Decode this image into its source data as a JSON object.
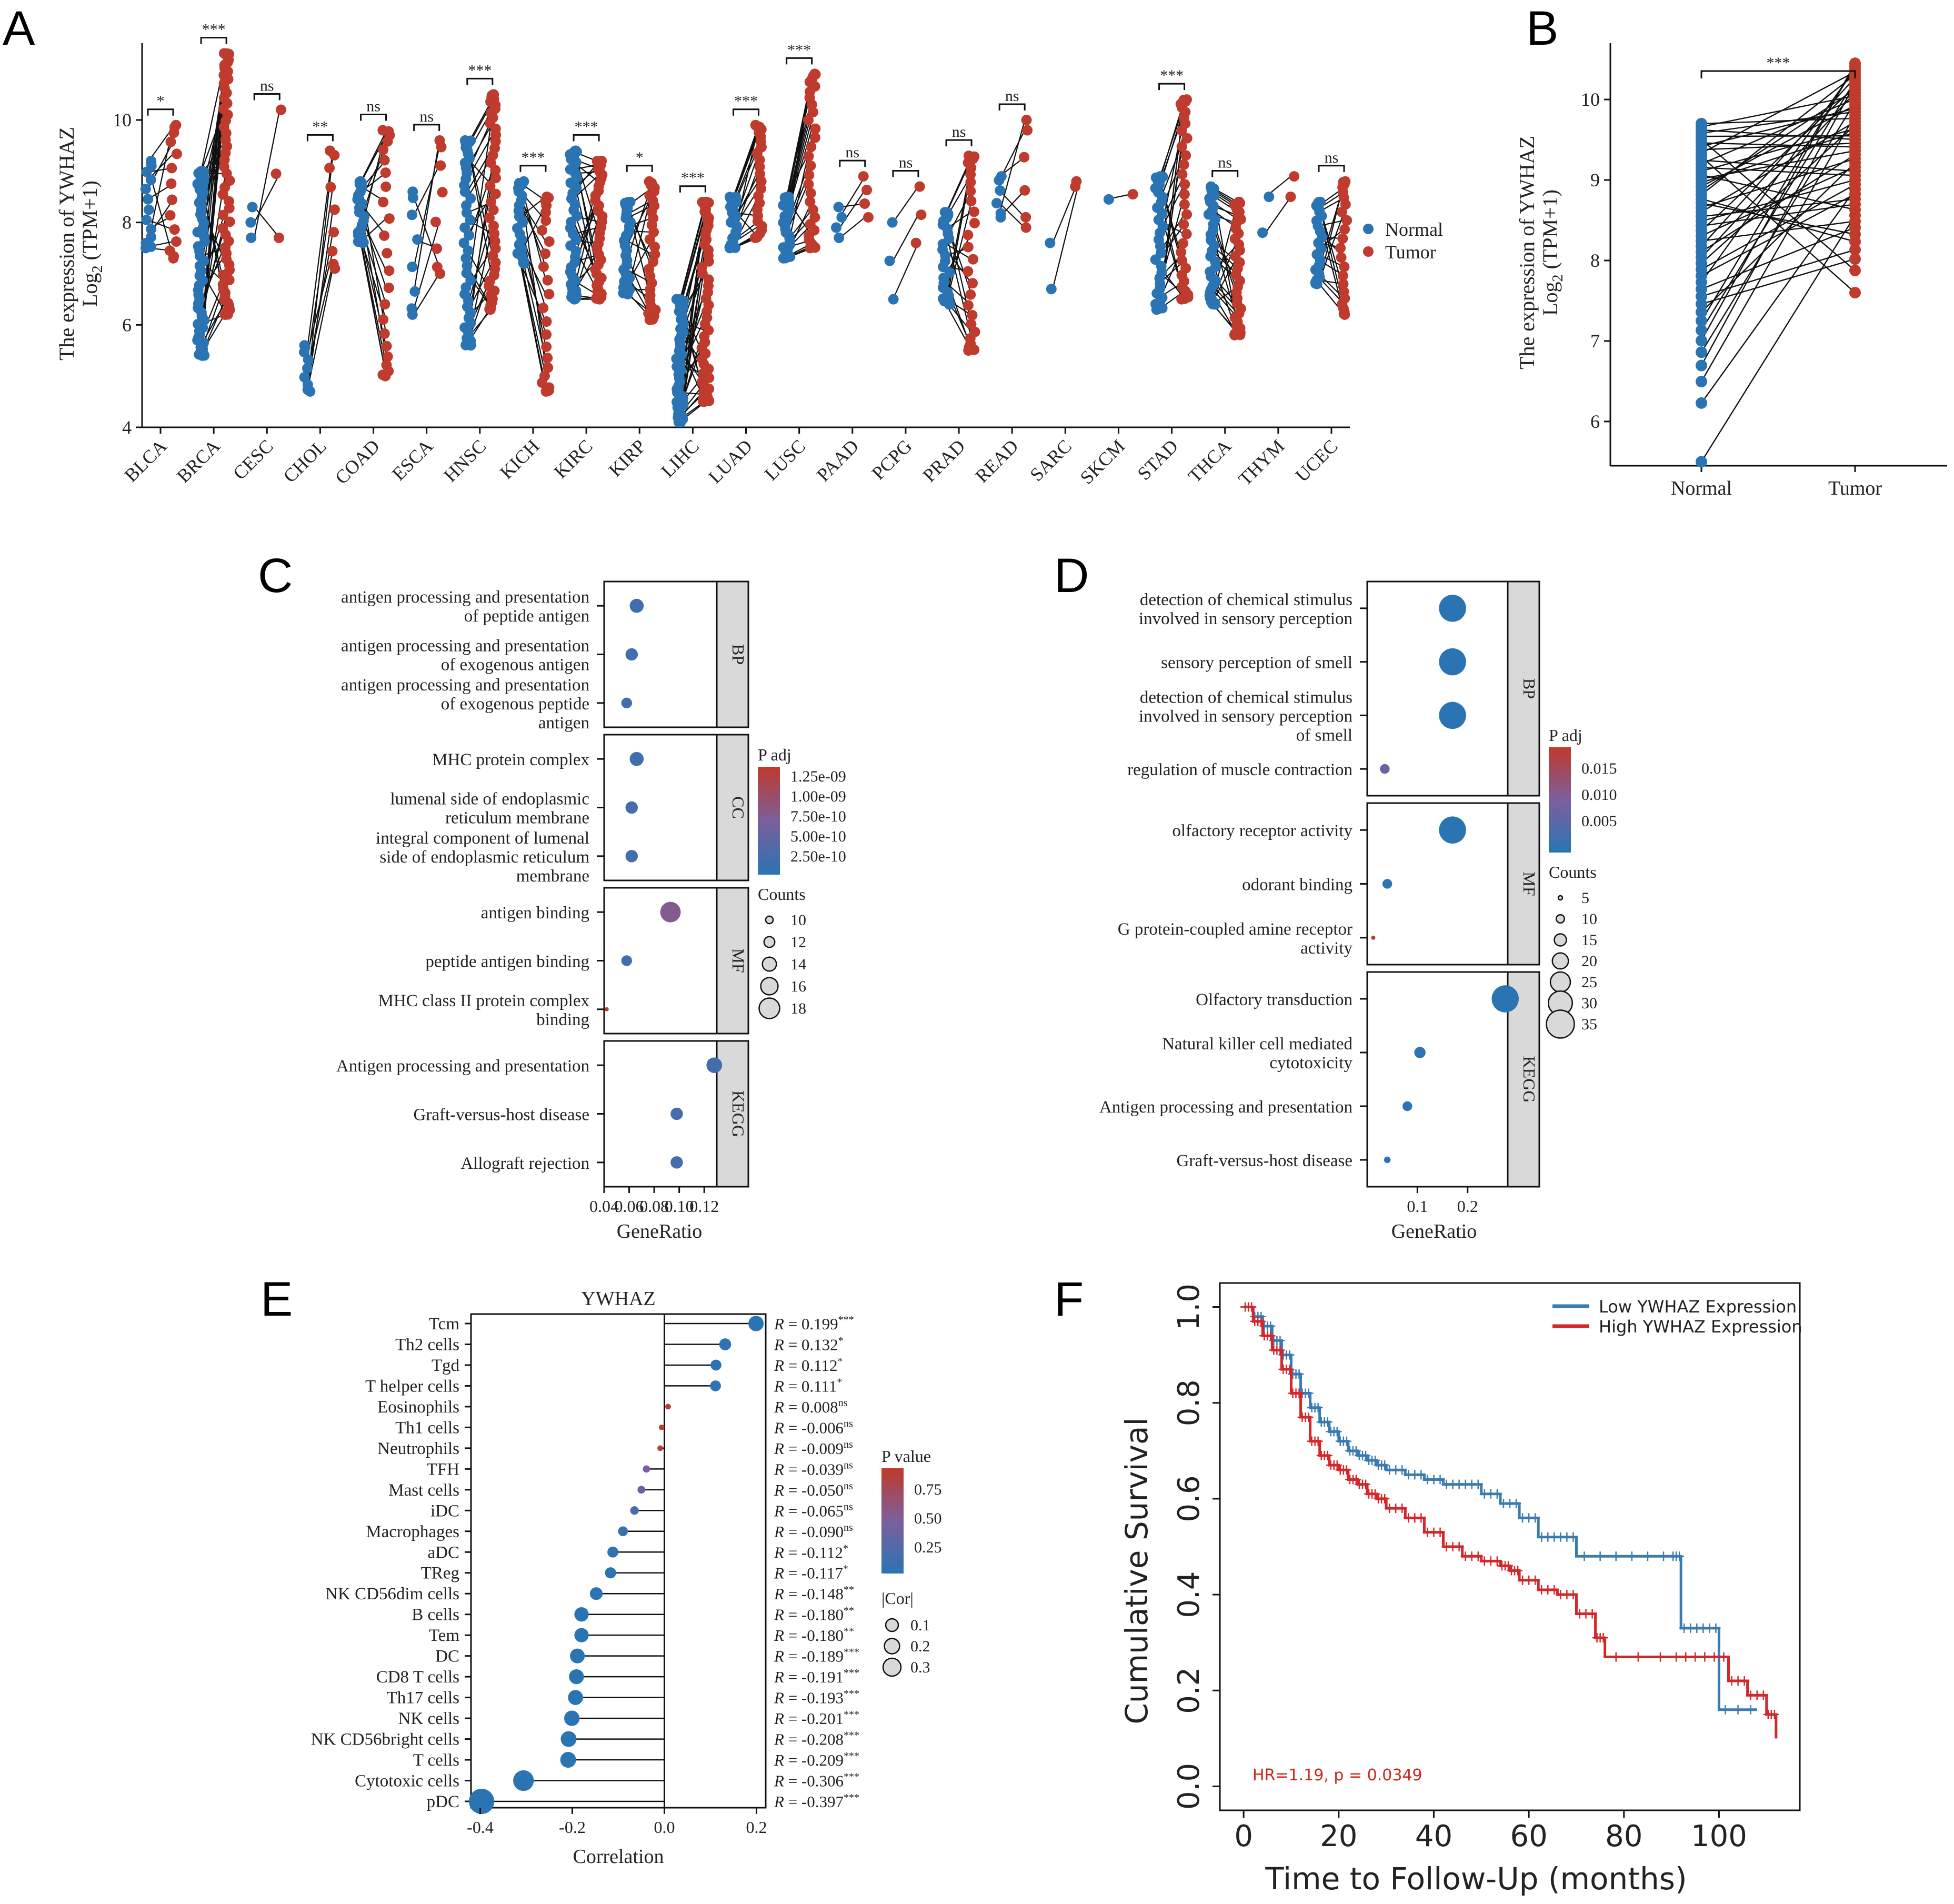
{
  "panels": {
    "A": "A",
    "B": "B",
    "C": "C",
    "D": "D",
    "E": "E",
    "F": "F"
  },
  "colors": {
    "normal": "#2a74b4",
    "tumor": "#bf3b2d",
    "line": "#111111",
    "low_km": "#3a7bb0",
    "high_km": "#d3272a",
    "hr_text": "#c8281e",
    "strip_fill": "#d9d9d9"
  },
  "chart_data": [
    {
      "id": "A",
      "type": "scatter",
      "title": "",
      "ylabel_line1": "The  expression   of YWHAZ",
      "ylabel_line2": "Log",
      "ylabel_sub": "2",
      "ylabel_tail": " (TPM+1)",
      "ylim": [
        4,
        11.5
      ],
      "yticks": [
        4,
        6,
        8,
        10
      ],
      "legend": [
        "Normal",
        "Tumor"
      ],
      "categories": [
        "BLCA",
        "BRCA",
        "CESC",
        "CHOL",
        "COAD",
        "ESCA",
        "HNSC",
        "KICH",
        "KIRC",
        "KIRP",
        "LIHC",
        "LUAD",
        "LUSC",
        "PAAD",
        "PCPG",
        "PRAD",
        "READ",
        "SARC",
        "SKCM",
        "STAD",
        "THCA",
        "THYM",
        "UCEC"
      ],
      "significance": [
        "*",
        "***",
        "ns",
        "**",
        "ns",
        "ns",
        "***",
        "***",
        "***",
        "*",
        "***",
        "***",
        "***",
        "ns",
        "ns",
        "ns",
        "ns",
        "",
        "",
        "***",
        "ns",
        "",
        "ns"
      ],
      "normal_range": [
        [
          7.5,
          9.2
        ],
        [
          5.4,
          9.0
        ],
        [
          7.7,
          8.3
        ],
        [
          4.7,
          5.6
        ],
        [
          7.6,
          8.8
        ],
        [
          6.2,
          8.6
        ],
        [
          5.6,
          9.6
        ],
        [
          7.2,
          8.8
        ],
        [
          6.5,
          9.4
        ],
        [
          6.6,
          8.4
        ],
        [
          4.1,
          6.5
        ],
        [
          7.5,
          8.5
        ],
        [
          7.3,
          8.5
        ],
        [
          7.7,
          8.3
        ],
        [
          6.5,
          8.0
        ],
        [
          6.4,
          8.2
        ],
        [
          8.1,
          8.9
        ],
        [
          6.7,
          7.6
        ],
        [
          8.4,
          8.5
        ],
        [
          6.3,
          8.9
        ],
        [
          6.4,
          8.7
        ],
        [
          7.8,
          8.5
        ],
        [
          6.8,
          8.4
        ]
      ],
      "tumor_range": [
        [
          7.3,
          9.9
        ],
        [
          6.2,
          11.3
        ],
        [
          7.7,
          10.2
        ],
        [
          7.1,
          9.4
        ],
        [
          5.0,
          9.8
        ],
        [
          7.0,
          9.6
        ],
        [
          6.3,
          10.5
        ],
        [
          4.7,
          8.5
        ],
        [
          6.5,
          9.2
        ],
        [
          6.1,
          8.8
        ],
        [
          4.5,
          8.4
        ],
        [
          7.7,
          9.9
        ],
        [
          7.5,
          10.9
        ],
        [
          8.1,
          8.9
        ],
        [
          7.6,
          8.7
        ],
        [
          5.5,
          9.3
        ],
        [
          7.9,
          10.0
        ],
        [
          8.7,
          8.8
        ],
        [
          8.5,
          8.6
        ],
        [
          6.5,
          10.4
        ],
        [
          5.8,
          8.4
        ],
        [
          8.5,
          8.9
        ],
        [
          6.2,
          8.8
        ]
      ],
      "n_points": [
        14,
        60,
        3,
        9,
        23,
        8,
        43,
        23,
        40,
        30,
        50,
        25,
        30,
        4,
        3,
        26,
        6,
        2,
        1,
        32,
        35,
        2,
        23
      ],
      "n_lines": [
        12,
        40,
        3,
        8,
        20,
        7,
        30,
        18,
        30,
        20,
        40,
        20,
        25,
        4,
        3,
        22,
        6,
        2,
        1,
        28,
        30,
        2,
        20
      ]
    },
    {
      "id": "B",
      "type": "scatter",
      "title": "",
      "ylabel_line1": "The  expression   of YWHAZ",
      "ylabel_line2": "Log",
      "ylabel_sub": "2",
      "ylabel_tail": " (TPM+1)",
      "ylim": [
        5.45,
        10.7
      ],
      "yticks": [
        6,
        7,
        8,
        9,
        10
      ],
      "categories": [
        "Normal",
        "Tumor"
      ],
      "significance": "***",
      "normal_range": [
        5.5,
        9.7
      ],
      "tumor_range": [
        7.6,
        10.45
      ],
      "n_pairs": 50
    },
    {
      "id": "C",
      "type": "scatter",
      "xlabel": "GeneRatio",
      "xlim": [
        0.04,
        0.13
      ],
      "xticks": [
        0.04,
        0.06,
        0.08,
        0.1,
        0.12
      ],
      "xtick_labels": [
        "0.04",
        "0.06",
        "0.08",
        "0.10",
        "0.12"
      ],
      "legend_padj_title": "P adj",
      "legend_padj_labels": [
        "1.25e-09",
        "1.00e-09",
        "7.50e-10",
        "5.00e-10",
        "2.50e-10"
      ],
      "legend_counts_title": "Counts",
      "legend_counts_labels": [
        "10",
        "12",
        "14",
        "16",
        "18"
      ],
      "groups": [
        {
          "label": "BP",
          "terms": [
            {
              "lines": [
                "antigen processing and presentation",
                "of peptide antigen"
              ],
              "x": 0.066,
              "count": 14,
              "padj": 2e-10
            },
            {
              "lines": [
                "antigen processing and presentation",
                "of exogenous antigen"
              ],
              "x": 0.062,
              "count": 13,
              "padj": 2e-10
            },
            {
              "lines": [
                "antigen processing and presentation",
                "of exogenous peptide",
                "antigen"
              ],
              "x": 0.058,
              "count": 12,
              "padj": 2e-10
            }
          ]
        },
        {
          "label": "CC",
          "terms": [
            {
              "lines": [
                "MHC protein complex"
              ],
              "x": 0.066,
              "count": 14,
              "padj": 2e-10
            },
            {
              "lines": [
                "lumenal side of endoplasmic",
                "reticulum membrane"
              ],
              "x": 0.062,
              "count": 13,
              "padj": 2e-10
            },
            {
              "lines": [
                "integral component of lumenal",
                "side of endoplasmic reticulum",
                "membrane"
              ],
              "x": 0.062,
              "count": 13,
              "padj": 2e-10
            }
          ]
        },
        {
          "label": "MF",
          "terms": [
            {
              "lines": [
                "antigen binding"
              ],
              "x": 0.093,
              "count": 18,
              "padj": 7.5e-10
            },
            {
              "lines": [
                "peptide antigen binding"
              ],
              "x": 0.058,
              "count": 12,
              "padj": 2e-10
            },
            {
              "lines": [
                "MHC class II protein complex",
                "binding"
              ],
              "x": 0.042,
              "count": 8,
              "padj": 1.3e-09
            }
          ]
        },
        {
          "label": "KEGG",
          "terms": [
            {
              "lines": [
                "Antigen processing and presentation"
              ],
              "x": 0.128,
              "count": 15,
              "padj": 2e-10
            },
            {
              "lines": [
                "Graft-versus-host disease"
              ],
              "x": 0.098,
              "count": 13,
              "padj": 2.5e-10
            },
            {
              "lines": [
                "Allograft rejection"
              ],
              "x": 0.098,
              "count": 13,
              "padj": 2.5e-10
            }
          ]
        }
      ]
    },
    {
      "id": "D",
      "type": "scatter",
      "xlabel": "GeneRatio",
      "xlim": [
        0.0,
        0.28
      ],
      "xticks": [
        0.1,
        0.2
      ],
      "xtick_labels": [
        "0.1",
        "0.2"
      ],
      "legend_padj_title": "P adj",
      "legend_padj_labels": [
        "0.015",
        "0.010",
        "0.005"
      ],
      "legend_counts_title": "Counts",
      "legend_counts_labels": [
        "5",
        "10",
        "15",
        "20",
        "25",
        "30",
        "35"
      ],
      "groups": [
        {
          "label": "BP",
          "terms": [
            {
              "lines": [
                "detection of chemical stimulus",
                "involved in sensory perception"
              ],
              "x": 0.17,
              "count": 34,
              "padj": 0.0001
            },
            {
              "lines": [
                "sensory perception of smell"
              ],
              "x": 0.17,
              "count": 34,
              "padj": 0.0001
            },
            {
              "lines": [
                "detection of chemical stimulus",
                "involved in sensory perception",
                "of smell"
              ],
              "x": 0.17,
              "count": 34,
              "padj": 0.0001
            },
            {
              "lines": [
                "regulation of muscle contraction"
              ],
              "x": 0.035,
              "count": 12,
              "padj": 0.008
            }
          ]
        },
        {
          "label": "MF",
          "terms": [
            {
              "lines": [
                "olfactory receptor activity"
              ],
              "x": 0.17,
              "count": 34,
              "padj": 0.0001
            },
            {
              "lines": [
                "odorant binding"
              ],
              "x": 0.04,
              "count": 12,
              "padj": 0.0005
            },
            {
              "lines": [
                "G protein-coupled amine receptor",
                "activity"
              ],
              "x": 0.012,
              "count": 5,
              "padj": 0.018
            }
          ]
        },
        {
          "label": "KEGG",
          "terms": [
            {
              "lines": [
                "Olfactory transduction"
              ],
              "x": 0.275,
              "count": 34,
              "padj": 0.0001
            },
            {
              "lines": [
                "Natural killer cell mediated",
                "cytotoxicity"
              ],
              "x": 0.105,
              "count": 14,
              "padj": 0.0005
            },
            {
              "lines": [
                "Antigen processing and presentation"
              ],
              "x": 0.08,
              "count": 12,
              "padj": 0.0005
            },
            {
              "lines": [
                "Graft-versus-host disease"
              ],
              "x": 0.04,
              "count": 8,
              "padj": 0.0005
            }
          ]
        }
      ]
    },
    {
      "id": "E",
      "type": "scatter",
      "title": "YWHAZ",
      "xlabel": "Correlation",
      "xlim": [
        -0.42,
        0.22
      ],
      "xticks": [
        -0.4,
        -0.2,
        0.0,
        0.2
      ],
      "xtick_labels": [
        "-0.4",
        "-0.2",
        "0.0",
        "0.2"
      ],
      "legend_p_title": "P value",
      "legend_p_labels": [
        "0.75",
        "0.50",
        "0.25"
      ],
      "legend_cor_title": "|Cor|",
      "legend_cor_labels": [
        "0.1",
        "0.2",
        "0.3"
      ],
      "cells": [
        "Tcm",
        "Th2 cells",
        "Tgd",
        "T helper cells",
        "Eosinophils",
        "Th1 cells",
        "Neutrophils",
        "TFH",
        "Mast cells",
        "iDC",
        "Macrophages",
        "aDC",
        "TReg",
        "NK CD56dim cells",
        "B cells",
        "Tem",
        "DC",
        "CD8 T cells",
        "Th17 cells",
        "NK cells",
        "NK CD56bright cells",
        "T cells",
        "Cytotoxic cells",
        "pDC"
      ],
      "r_values": [
        0.199,
        0.132,
        0.112,
        0.111,
        0.008,
        -0.006,
        -0.009,
        -0.039,
        -0.05,
        -0.065,
        -0.09,
        -0.112,
        -0.117,
        -0.148,
        -0.18,
        -0.18,
        -0.189,
        -0.191,
        -0.193,
        -0.201,
        -0.208,
        -0.209,
        -0.306,
        -0.397
      ],
      "r_labels": [
        "0.199",
        "0.132",
        "0.112",
        "0.111",
        "0.008",
        "-0.006",
        "-0.009",
        "-0.039",
        "-0.050",
        "-0.065",
        "-0.090",
        "-0.112",
        "-0.117",
        "-0.148",
        "-0.180",
        "-0.180",
        "-0.189",
        "-0.191",
        "-0.193",
        "-0.201",
        "-0.208",
        "-0.209",
        "-0.306",
        "-0.397"
      ],
      "sig_labels": [
        "***",
        "*",
        "*",
        "*",
        "ns",
        "ns",
        "ns",
        "ns",
        "ns",
        "ns",
        "ns",
        "*",
        "*",
        "**",
        "**",
        "**",
        "***",
        "***",
        "***",
        "***",
        "***",
        "***",
        "***",
        "***"
      ],
      "p_values": [
        0.0001,
        0.02,
        0.03,
        0.03,
        0.87,
        0.9,
        0.85,
        0.45,
        0.33,
        0.2,
        0.1,
        0.03,
        0.02,
        0.004,
        0.001,
        0.001,
        0.0002,
        0.0002,
        0.0002,
        0.0001,
        0.0001,
        0.0001,
        0.0001,
        0.0001
      ]
    },
    {
      "id": "F",
      "type": "line",
      "xlabel": "Time to Follow-Up (months)",
      "ylabel": "Cumulative Survival",
      "xlim": [
        -5,
        117
      ],
      "ylim": [
        -0.05,
        1.05
      ],
      "xticks": [
        0,
        20,
        40,
        60,
        80,
        100
      ],
      "yticks": [
        0.0,
        0.2,
        0.4,
        0.6,
        0.8,
        1.0
      ],
      "xtick_labels": [
        "0",
        "20",
        "40",
        "60",
        "80",
        "100"
      ],
      "ytick_labels": [
        "0.0",
        "0.2",
        "0.4",
        "0.6",
        "0.8",
        "1.0"
      ],
      "annotation": "HR=1.19, p = 0.0349",
      "series": [
        {
          "name": "Low YWHAZ Expression",
          "x": [
            0,
            2,
            4,
            6,
            8,
            10,
            12,
            14,
            16,
            18,
            20,
            22,
            24,
            26,
            28,
            30,
            34,
            38,
            42,
            46,
            50,
            54,
            58,
            62,
            66,
            70,
            80,
            90,
            92,
            96,
            100,
            108
          ],
          "y": [
            1.0,
            0.98,
            0.96,
            0.93,
            0.9,
            0.86,
            0.82,
            0.79,
            0.76,
            0.74,
            0.72,
            0.7,
            0.69,
            0.68,
            0.67,
            0.66,
            0.65,
            0.64,
            0.63,
            0.63,
            0.61,
            0.59,
            0.56,
            0.52,
            0.52,
            0.48,
            0.48,
            0.48,
            0.33,
            0.33,
            0.16,
            0.16
          ]
        },
        {
          "name": "High YWHAZ Expression",
          "x": [
            0,
            2,
            4,
            6,
            8,
            10,
            12,
            14,
            16,
            18,
            20,
            22,
            24,
            26,
            28,
            30,
            34,
            38,
            42,
            46,
            50,
            54,
            56,
            58,
            62,
            66,
            70,
            74,
            76,
            90,
            96,
            102,
            106,
            110,
            112
          ],
          "y": [
            1.0,
            0.97,
            0.94,
            0.91,
            0.87,
            0.82,
            0.77,
            0.72,
            0.69,
            0.67,
            0.66,
            0.64,
            0.63,
            0.61,
            0.6,
            0.58,
            0.56,
            0.53,
            0.5,
            0.48,
            0.47,
            0.46,
            0.45,
            0.43,
            0.41,
            0.4,
            0.36,
            0.31,
            0.27,
            0.27,
            0.27,
            0.22,
            0.19,
            0.15,
            0.1
          ]
        }
      ]
    }
  ]
}
